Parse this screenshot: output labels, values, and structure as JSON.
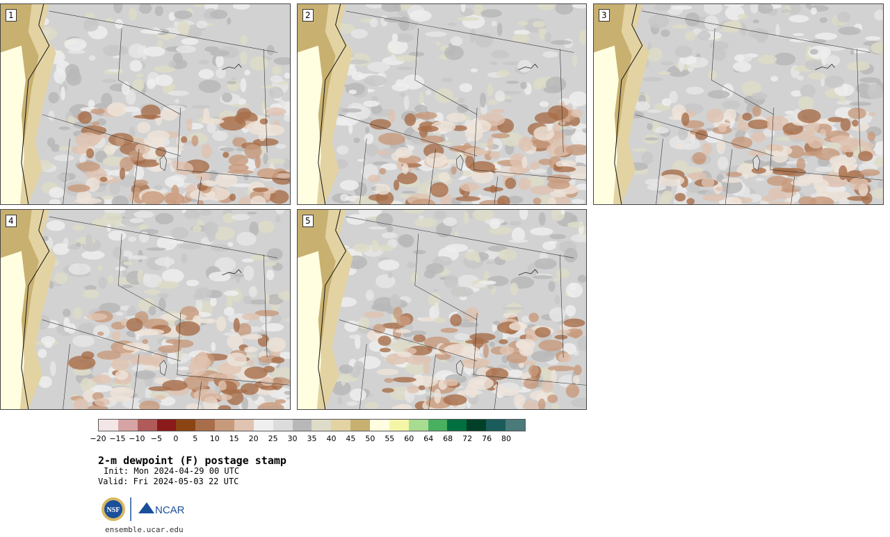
{
  "product": {
    "title": "2-m dewpoint (F) postage stamp",
    "init": "Init: Mon 2024-04-29 00 UTC",
    "valid": "Valid: Fri 2024-05-03 22 UTC",
    "site": "ensemble.ucar.edu"
  },
  "panels": [
    {
      "label": "1",
      "member": 1
    },
    {
      "label": "2",
      "member": 2
    },
    {
      "label": "3",
      "member": 3
    },
    {
      "label": "4",
      "member": 4
    },
    {
      "label": "5",
      "member": 5
    }
  ],
  "colorbar": {
    "unit": "F",
    "tick_labels": [
      "−20",
      "−15",
      "−10",
      "−5",
      "0",
      "5",
      "10",
      "15",
      "20",
      "25",
      "30",
      "35",
      "40",
      "45",
      "50",
      "55",
      "60",
      "64",
      "68",
      "72",
      "76",
      "80"
    ],
    "colors": [
      "#f3e6e6",
      "#d6a4a4",
      "#b05a5a",
      "#8b1a1a",
      "#8b4513",
      "#a86e4a",
      "#c89a7c",
      "#e0c3b0",
      "#efefef",
      "#dcdcdc",
      "#b8b8b8",
      "#dedcc8",
      "#e3d3a3",
      "#c8b070",
      "#fffee0",
      "#f5f5a8",
      "#a8dc90",
      "#48b060",
      "#007040",
      "#004028",
      "#1a5c5c",
      "#4a7a7a"
    ]
  },
  "logos": {
    "nsf": "NSF",
    "ncar": "NCAR"
  }
}
